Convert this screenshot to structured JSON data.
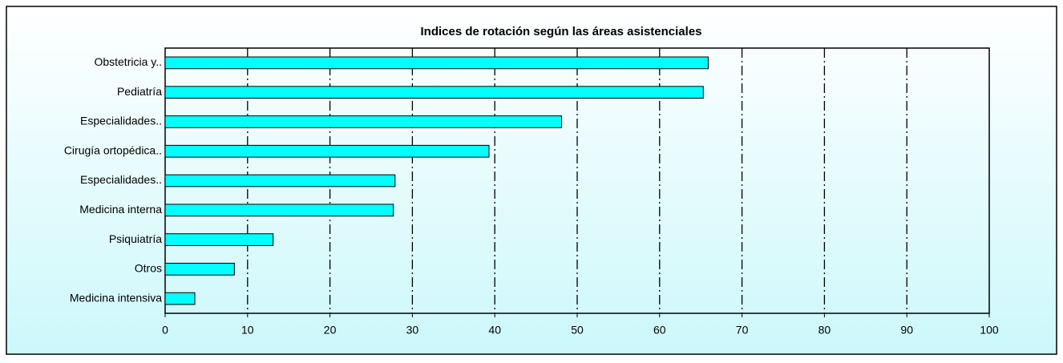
{
  "chart_data": {
    "type": "barh",
    "title": "Indices de rotación según las áreas asistenciales",
    "categories": [
      "Obstetricia y..",
      "Pediatría",
      "Especialidades..",
      "Cirugía ortopédica..",
      "Especialidades..",
      "Medicina interna",
      "Psiquiatría",
      "Otros",
      "Medicina intensiva"
    ],
    "values": [
      65.9,
      65.3,
      48.1,
      39.3,
      27.9,
      27.7,
      13.1,
      8.4,
      3.6
    ],
    "color": "#00ffff",
    "xlim": [
      0,
      100
    ],
    "xticks": [
      0,
      10,
      20,
      30,
      40,
      50,
      60,
      70,
      80,
      90,
      100
    ],
    "grid": true
  }
}
